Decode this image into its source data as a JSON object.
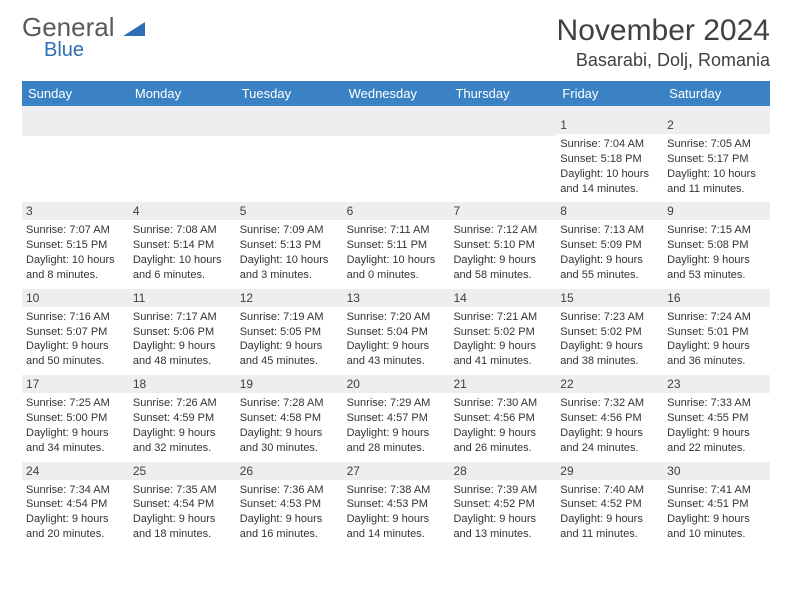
{
  "logo": {
    "text1": "General",
    "text2": "Blue",
    "text1_color": "#5a5a5a",
    "text2_color": "#2e6fb5",
    "shape_color": "#2e6fb5"
  },
  "title": "November 2024",
  "location": "Basarabi, Dolj, Romania",
  "colors": {
    "header_bg": "#3a82c4",
    "header_text": "#ffffff",
    "daynum_bg": "#edeef0",
    "text": "#333333",
    "title_text": "#404040"
  },
  "dayNames": [
    "Sunday",
    "Monday",
    "Tuesday",
    "Wednesday",
    "Thursday",
    "Friday",
    "Saturday"
  ],
  "weeks": [
    [
      {
        "num": "",
        "sunrise": "",
        "sunset": "",
        "daylight": ""
      },
      {
        "num": "",
        "sunrise": "",
        "sunset": "",
        "daylight": ""
      },
      {
        "num": "",
        "sunrise": "",
        "sunset": "",
        "daylight": ""
      },
      {
        "num": "",
        "sunrise": "",
        "sunset": "",
        "daylight": ""
      },
      {
        "num": "",
        "sunrise": "",
        "sunset": "",
        "daylight": ""
      },
      {
        "num": "1",
        "sunrise": "Sunrise: 7:04 AM",
        "sunset": "Sunset: 5:18 PM",
        "daylight": "Daylight: 10 hours and 14 minutes."
      },
      {
        "num": "2",
        "sunrise": "Sunrise: 7:05 AM",
        "sunset": "Sunset: 5:17 PM",
        "daylight": "Daylight: 10 hours and 11 minutes."
      }
    ],
    [
      {
        "num": "3",
        "sunrise": "Sunrise: 7:07 AM",
        "sunset": "Sunset: 5:15 PM",
        "daylight": "Daylight: 10 hours and 8 minutes."
      },
      {
        "num": "4",
        "sunrise": "Sunrise: 7:08 AM",
        "sunset": "Sunset: 5:14 PM",
        "daylight": "Daylight: 10 hours and 6 minutes."
      },
      {
        "num": "5",
        "sunrise": "Sunrise: 7:09 AM",
        "sunset": "Sunset: 5:13 PM",
        "daylight": "Daylight: 10 hours and 3 minutes."
      },
      {
        "num": "6",
        "sunrise": "Sunrise: 7:11 AM",
        "sunset": "Sunset: 5:11 PM",
        "daylight": "Daylight: 10 hours and 0 minutes."
      },
      {
        "num": "7",
        "sunrise": "Sunrise: 7:12 AM",
        "sunset": "Sunset: 5:10 PM",
        "daylight": "Daylight: 9 hours and 58 minutes."
      },
      {
        "num": "8",
        "sunrise": "Sunrise: 7:13 AM",
        "sunset": "Sunset: 5:09 PM",
        "daylight": "Daylight: 9 hours and 55 minutes."
      },
      {
        "num": "9",
        "sunrise": "Sunrise: 7:15 AM",
        "sunset": "Sunset: 5:08 PM",
        "daylight": "Daylight: 9 hours and 53 minutes."
      }
    ],
    [
      {
        "num": "10",
        "sunrise": "Sunrise: 7:16 AM",
        "sunset": "Sunset: 5:07 PM",
        "daylight": "Daylight: 9 hours and 50 minutes."
      },
      {
        "num": "11",
        "sunrise": "Sunrise: 7:17 AM",
        "sunset": "Sunset: 5:06 PM",
        "daylight": "Daylight: 9 hours and 48 minutes."
      },
      {
        "num": "12",
        "sunrise": "Sunrise: 7:19 AM",
        "sunset": "Sunset: 5:05 PM",
        "daylight": "Daylight: 9 hours and 45 minutes."
      },
      {
        "num": "13",
        "sunrise": "Sunrise: 7:20 AM",
        "sunset": "Sunset: 5:04 PM",
        "daylight": "Daylight: 9 hours and 43 minutes."
      },
      {
        "num": "14",
        "sunrise": "Sunrise: 7:21 AM",
        "sunset": "Sunset: 5:02 PM",
        "daylight": "Daylight: 9 hours and 41 minutes."
      },
      {
        "num": "15",
        "sunrise": "Sunrise: 7:23 AM",
        "sunset": "Sunset: 5:02 PM",
        "daylight": "Daylight: 9 hours and 38 minutes."
      },
      {
        "num": "16",
        "sunrise": "Sunrise: 7:24 AM",
        "sunset": "Sunset: 5:01 PM",
        "daylight": "Daylight: 9 hours and 36 minutes."
      }
    ],
    [
      {
        "num": "17",
        "sunrise": "Sunrise: 7:25 AM",
        "sunset": "Sunset: 5:00 PM",
        "daylight": "Daylight: 9 hours and 34 minutes."
      },
      {
        "num": "18",
        "sunrise": "Sunrise: 7:26 AM",
        "sunset": "Sunset: 4:59 PM",
        "daylight": "Daylight: 9 hours and 32 minutes."
      },
      {
        "num": "19",
        "sunrise": "Sunrise: 7:28 AM",
        "sunset": "Sunset: 4:58 PM",
        "daylight": "Daylight: 9 hours and 30 minutes."
      },
      {
        "num": "20",
        "sunrise": "Sunrise: 7:29 AM",
        "sunset": "Sunset: 4:57 PM",
        "daylight": "Daylight: 9 hours and 28 minutes."
      },
      {
        "num": "21",
        "sunrise": "Sunrise: 7:30 AM",
        "sunset": "Sunset: 4:56 PM",
        "daylight": "Daylight: 9 hours and 26 minutes."
      },
      {
        "num": "22",
        "sunrise": "Sunrise: 7:32 AM",
        "sunset": "Sunset: 4:56 PM",
        "daylight": "Daylight: 9 hours and 24 minutes."
      },
      {
        "num": "23",
        "sunrise": "Sunrise: 7:33 AM",
        "sunset": "Sunset: 4:55 PM",
        "daylight": "Daylight: 9 hours and 22 minutes."
      }
    ],
    [
      {
        "num": "24",
        "sunrise": "Sunrise: 7:34 AM",
        "sunset": "Sunset: 4:54 PM",
        "daylight": "Daylight: 9 hours and 20 minutes."
      },
      {
        "num": "25",
        "sunrise": "Sunrise: 7:35 AM",
        "sunset": "Sunset: 4:54 PM",
        "daylight": "Daylight: 9 hours and 18 minutes."
      },
      {
        "num": "26",
        "sunrise": "Sunrise: 7:36 AM",
        "sunset": "Sunset: 4:53 PM",
        "daylight": "Daylight: 9 hours and 16 minutes."
      },
      {
        "num": "27",
        "sunrise": "Sunrise: 7:38 AM",
        "sunset": "Sunset: 4:53 PM",
        "daylight": "Daylight: 9 hours and 14 minutes."
      },
      {
        "num": "28",
        "sunrise": "Sunrise: 7:39 AM",
        "sunset": "Sunset: 4:52 PM",
        "daylight": "Daylight: 9 hours and 13 minutes."
      },
      {
        "num": "29",
        "sunrise": "Sunrise: 7:40 AM",
        "sunset": "Sunset: 4:52 PM",
        "daylight": "Daylight: 9 hours and 11 minutes."
      },
      {
        "num": "30",
        "sunrise": "Sunrise: 7:41 AM",
        "sunset": "Sunset: 4:51 PM",
        "daylight": "Daylight: 9 hours and 10 minutes."
      }
    ]
  ]
}
